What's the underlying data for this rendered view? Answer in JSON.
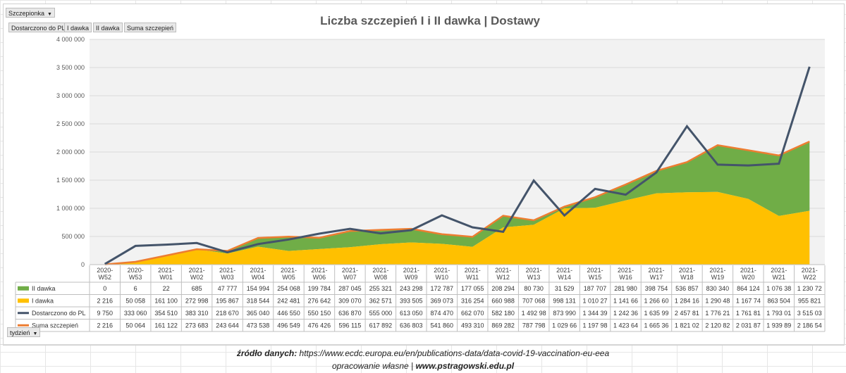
{
  "controls": {
    "filter_label": "Szczepionka",
    "legend_buttons": [
      "Dostarczono do PL",
      "I  dawka",
      "II  dawka",
      "Suma  szczepień"
    ],
    "axis_filter_label": "tydzień"
  },
  "chart_data": {
    "type": "area",
    "title": "Liczba szczepień I i II dawka | Dostawy",
    "categories": [
      "2020-W52",
      "2020-W53",
      "2021-W01",
      "2021-W02",
      "2021-W03",
      "2021-W04",
      "2021-W05",
      "2021-W06",
      "2021-W07",
      "2021-W08",
      "2021-W09",
      "2021-W10",
      "2021-W11",
      "2021-W12",
      "2021-W13",
      "2021-W14",
      "2021-W15",
      "2021-W16",
      "2021-W17",
      "2021-W18",
      "2021-W19",
      "2021-W20",
      "2021-W21",
      "2021-W22"
    ],
    "ylim": [
      0,
      4000000
    ],
    "yticks": [
      0,
      500000,
      1000000,
      1500000,
      2000000,
      2500000,
      3000000,
      3500000,
      4000000
    ],
    "ytick_labels": [
      "0",
      "500 000",
      "1 000 000",
      "1 500 000",
      "2 000 000",
      "2 500 000",
      "3 000 000",
      "3 500 000",
      "4 000 000"
    ],
    "series": [
      {
        "name": "II  dawka",
        "kind": "stacked-area",
        "color": "#70ad47",
        "values": [
          0,
          6,
          22,
          685,
          47777,
          154994,
          254068,
          199784,
          287045,
          255321,
          243298,
          172787,
          177055,
          208294,
          80730,
          31529,
          187707,
          281980,
          398754,
          536857,
          830340,
          864124,
          1076380,
          1230720
        ],
        "labels": [
          "0",
          "6",
          "22",
          "685",
          "47 777",
          "154 994",
          "254 068",
          "199 784",
          "287 045",
          "255 321",
          "243 298",
          "172 787",
          "177 055",
          "208 294",
          "80 730",
          "31 529",
          "187 707",
          "281 980",
          "398 754",
          "536 857",
          "830 340",
          "864 124",
          "1 076 38",
          "1 230 72"
        ]
      },
      {
        "name": "I  dawka",
        "kind": "stacked-area",
        "color": "#ffc000",
        "values": [
          2216,
          50058,
          161100,
          272998,
          195867,
          318544,
          242481,
          276642,
          309070,
          362571,
          393505,
          369073,
          316254,
          660988,
          707068,
          998131,
          1010270,
          1141660,
          1266600,
          1284160,
          1290480,
          1167740,
          863504,
          955821
        ],
        "labels": [
          "2 216",
          "50 058",
          "161 100",
          "272 998",
          "195 867",
          "318 544",
          "242 481",
          "276 642",
          "309 070",
          "362 571",
          "393 505",
          "369 073",
          "316 254",
          "660 988",
          "707 068",
          "998 131",
          "1 010 27",
          "1 141 66",
          "1 266 60",
          "1 284 16",
          "1 290 48",
          "1 167 74",
          "863 504",
          "955 821"
        ]
      },
      {
        "name": "Dostarczono do PL",
        "kind": "line",
        "color": "#44546a",
        "values": [
          9750,
          333060,
          354510,
          383310,
          218670,
          365040,
          446550,
          550150,
          636870,
          555000,
          613050,
          874470,
          662070,
          582180,
          1492980,
          873990,
          1344390,
          1242360,
          1635990,
          2457810,
          1776210,
          1761810,
          1793010,
          3515030
        ],
        "labels": [
          "9 750",
          "333 060",
          "354 510",
          "383 310",
          "218 670",
          "365 040",
          "446 550",
          "550 150",
          "636 870",
          "555 000",
          "613 050",
          "874 470",
          "662 070",
          "582 180",
          "1 492 98",
          "873 990",
          "1 344 39",
          "1 242 36",
          "1 635 99",
          "2 457 81",
          "1 776 21",
          "1 761 81",
          "1 793 01",
          "3 515 03"
        ]
      },
      {
        "name": "Suma  szczepień",
        "kind": "line",
        "color": "#ed7d31",
        "values": [
          2216,
          50064,
          161122,
          273683,
          243644,
          473538,
          496549,
          476426,
          596115,
          617892,
          636803,
          541860,
          493310,
          869282,
          787798,
          1029660,
          1197980,
          1423640,
          1665360,
          1821020,
          2120820,
          2031870,
          1939890,
          2186540
        ],
        "labels": [
          "2 216",
          "50 064",
          "161 122",
          "273 683",
          "243 644",
          "473 538",
          "496 549",
          "476 426",
          "596 115",
          "617 892",
          "636 803",
          "541 860",
          "493 310",
          "869 282",
          "787 798",
          "1 029 66",
          "1 197 98",
          "1 423 64",
          "1 665 36",
          "1 821 02",
          "2 120 82",
          "2 031 87",
          "1 939 89",
          "2 186 54"
        ]
      }
    ]
  },
  "footer": {
    "source_label": "źródło danych:",
    "source_url": "https://www.ecdc.europa.eu/en/publications-data/data-covid-19-vaccination-eu-eea",
    "credit_label": "opracowanie własne |",
    "credit_url": "www.pstragowski.edu.pl"
  }
}
